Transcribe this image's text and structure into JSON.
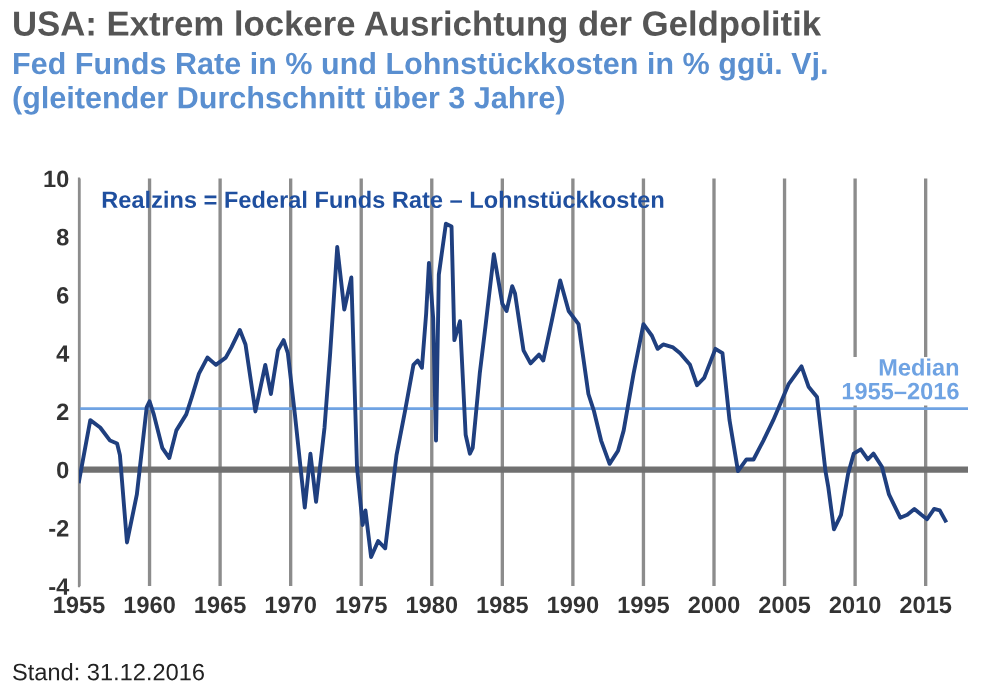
{
  "chart_data": {
    "type": "line",
    "title": "USA: Extrem lockere Ausrichtung der Geldpolitik",
    "subtitle": "Fed Funds Rate in % und Lohnstückkosten in % ggü. Vj.\n(gleitender Durchschnitt über 3 Jahre)",
    "annotations": [
      "Realzins = Federal Funds Rate – Lohnstückkosten",
      "Stand: 31.12.2016"
    ],
    "series": [
      {
        "color": "#1f3f7f",
        "x": [
          1955.0,
          1955.8,
          1956.5,
          1957.2,
          1957.7,
          1957.9,
          1958.4,
          1959.1,
          1959.8,
          1960.0,
          1960.3,
          1960.9,
          1961.4,
          1961.9,
          1962.6,
          1963.0,
          1963.5,
          1964.1,
          1964.7,
          1965.4,
          1965.8,
          1966.4,
          1966.8,
          1967.5,
          1968.2,
          1968.6,
          1969.1,
          1969.5,
          1969.8,
          1970.3,
          1971.0,
          1971.4,
          1971.8,
          1972.4,
          1972.8,
          1973.3,
          1973.8,
          1974.3,
          1974.7,
          1975.1,
          1975.3,
          1975.7,
          1976.2,
          1976.7,
          1977.5,
          1978.1,
          1978.7,
          1979.0,
          1979.3,
          1979.6,
          1979.8,
          1980.1,
          1980.3,
          1980.5,
          1981.0,
          1981.4,
          1981.6,
          1982.0,
          1982.4,
          1982.7,
          1982.9,
          1983.4,
          1983.8,
          1984.4,
          1985.0,
          1985.3,
          1985.7,
          1985.9,
          1986.5,
          1987.0,
          1987.6,
          1987.9,
          1988.5,
          1989.1,
          1989.7,
          1990.4,
          1991.1,
          1991.5,
          1992.0,
          1992.6,
          1993.2,
          1993.6,
          1994.3,
          1995.0,
          1995.6,
          1996.0,
          1996.4,
          1997.1,
          1997.6,
          1998.3,
          1998.8,
          1999.3,
          2000.1,
          2000.6,
          2001.1,
          2001.7,
          2002.3,
          2002.8,
          2003.5,
          2004.2,
          2004.6,
          2005.3,
          2006.2,
          2006.7,
          2007.3,
          2007.9,
          2008.1,
          2008.5,
          2009.0,
          2009.5,
          2009.9,
          2010.4,
          2010.9,
          2011.3,
          2011.9,
          2012.4,
          2013.2,
          2013.7,
          2014.2,
          2014.7,
          2015.1,
          2015.6,
          2016.0,
          2016.4
        ],
        "values": [
          -0.4,
          1.7,
          1.45,
          1.0,
          0.9,
          0.5,
          -2.5,
          -0.85,
          2.15,
          2.35,
          1.9,
          0.75,
          0.4,
          1.35,
          1.9,
          2.5,
          3.3,
          3.85,
          3.6,
          3.85,
          4.2,
          4.8,
          4.3,
          2.0,
          3.6,
          2.6,
          4.1,
          4.45,
          4.0,
          1.9,
          -1.3,
          0.55,
          -1.1,
          1.45,
          4.0,
          7.65,
          5.5,
          6.6,
          0.1,
          -1.9,
          -1.4,
          -3.0,
          -2.45,
          -2.7,
          0.5,
          2.0,
          3.6,
          3.75,
          3.5,
          5.35,
          7.1,
          5.2,
          1.0,
          6.7,
          8.45,
          8.35,
          4.45,
          5.1,
          1.2,
          0.55,
          0.75,
          3.3,
          4.9,
          7.4,
          5.7,
          5.45,
          6.3,
          6.05,
          4.1,
          3.65,
          3.95,
          3.75,
          5.1,
          6.5,
          5.45,
          5.0,
          2.6,
          2.0,
          1.0,
          0.2,
          0.65,
          1.35,
          3.3,
          5.0,
          4.6,
          4.15,
          4.3,
          4.2,
          4.0,
          3.6,
          2.9,
          3.15,
          4.15,
          4.0,
          1.7,
          -0.05,
          0.35,
          0.35,
          1.0,
          1.7,
          2.15,
          2.95,
          3.55,
          2.85,
          2.5,
          -0.05,
          -0.6,
          -2.05,
          -1.55,
          -0.15,
          0.55,
          0.7,
          0.35,
          0.55,
          0.1,
          -0.85,
          -1.65,
          -1.55,
          -1.35,
          -1.55,
          -1.7,
          -1.35,
          -1.4,
          -1.75
        ]
      }
    ],
    "xlim": [
      1955,
      2018
    ],
    "xticks": [
      1955,
      1960,
      1965,
      1970,
      1975,
      1980,
      1985,
      1990,
      1995,
      2000,
      2005,
      2010,
      2015
    ],
    "ylim": [
      -4,
      10
    ],
    "yticks": [
      -4,
      -2,
      0,
      2,
      4,
      6,
      8,
      10
    ],
    "ref_lines": [
      {
        "axis": "y",
        "value": 0,
        "color": "#707070"
      },
      {
        "axis": "y",
        "value": 2.1,
        "label": "Median\n1955–2016",
        "color": "#6fa3e3"
      }
    ],
    "grid": "x",
    "legend": false,
    "marker": "none",
    "line_style": "solid"
  }
}
